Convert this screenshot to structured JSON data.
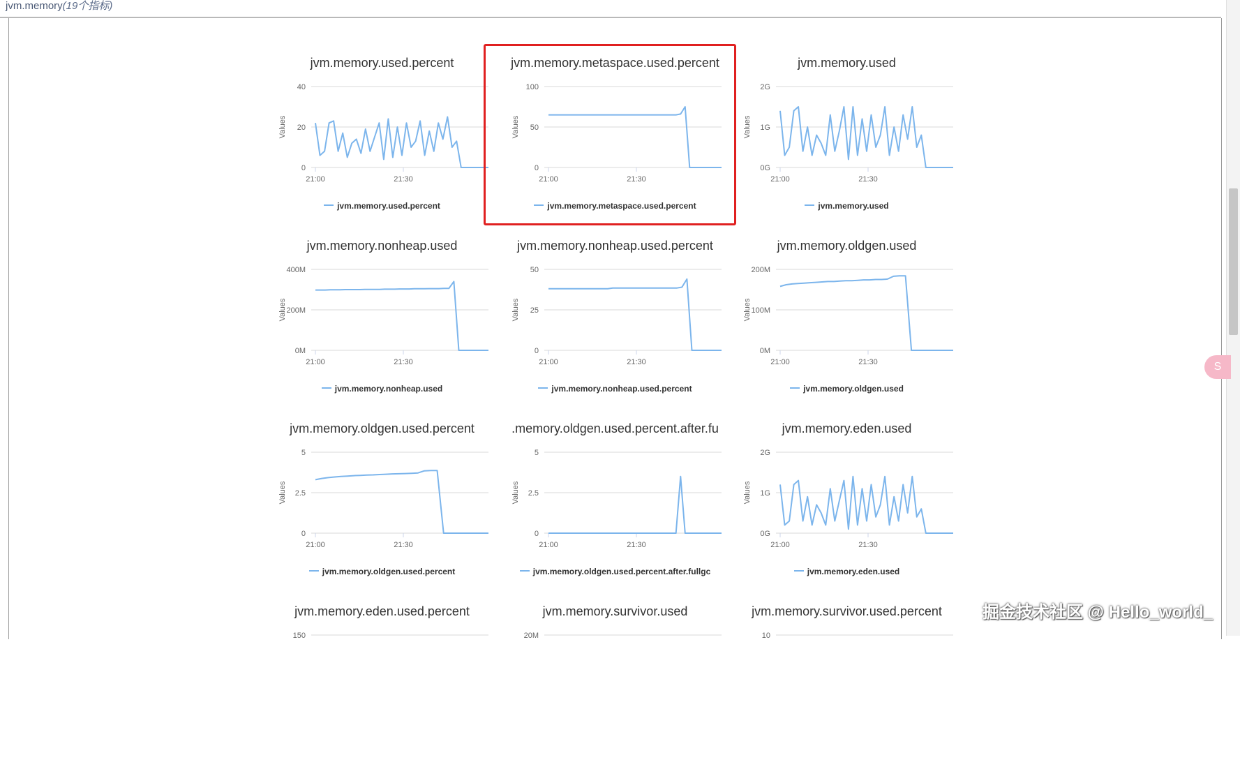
{
  "header": {
    "title": "jvm.memory",
    "count": "(19个指标)"
  },
  "charts": [
    {
      "title": "jvm.memory.used.percent",
      "legend": "jvm.memory.used.percent",
      "yticks": [
        "0",
        "20",
        "40"
      ],
      "ymax": 40,
      "xticks": [
        "21:00",
        "21:30"
      ],
      "series": [
        22,
        6,
        8,
        22,
        23,
        8,
        17,
        5,
        12,
        14,
        7,
        19,
        8,
        15,
        22,
        4,
        24,
        5,
        20,
        6,
        22,
        10,
        13,
        23,
        6,
        18,
        8,
        22,
        14,
        25,
        10,
        13,
        0,
        0,
        0,
        0,
        0,
        0,
        0
      ]
    },
    {
      "title": "jvm.memory.metaspace.used.percent",
      "legend": "jvm.memory.metaspace.used.percent",
      "yticks": [
        "0",
        "50",
        "100"
      ],
      "ymax": 100,
      "xticks": [
        "21:00",
        "21:30"
      ],
      "series": [
        65,
        65,
        65,
        65,
        65,
        65,
        65,
        65,
        65,
        65,
        65,
        65,
        65,
        65,
        65,
        65,
        65,
        65,
        65,
        65,
        65,
        65,
        65,
        65,
        65,
        65,
        65,
        65,
        65,
        66,
        75,
        0,
        0,
        0,
        0,
        0,
        0,
        0,
        0
      ]
    },
    {
      "title": "jvm.memory.used",
      "legend": "jvm.memory.used",
      "yticks": [
        "0G",
        "1G",
        "2G"
      ],
      "ymax": 2,
      "xticks": [
        "21:00",
        "21:30"
      ],
      "series": [
        1.4,
        0.3,
        0.5,
        1.4,
        1.5,
        0.4,
        1.0,
        0.3,
        0.8,
        0.6,
        0.3,
        1.3,
        0.4,
        0.9,
        1.5,
        0.2,
        1.5,
        0.3,
        1.2,
        0.4,
        1.3,
        0.5,
        0.8,
        1.5,
        0.3,
        1.0,
        0.4,
        1.3,
        0.7,
        1.5,
        0.5,
        0.8,
        0,
        0,
        0,
        0,
        0,
        0,
        0
      ]
    },
    {
      "title": "jvm.memory.nonheap.used",
      "legend": "jvm.memory.nonheap.used",
      "yticks": [
        "0M",
        "200M",
        "400M"
      ],
      "ymax": 400,
      "xticks": [
        "21:00",
        "21:30"
      ],
      "series": [
        298,
        298,
        298,
        299,
        299,
        299,
        300,
        300,
        300,
        300,
        301,
        301,
        301,
        301,
        302,
        302,
        302,
        303,
        303,
        303,
        304,
        304,
        304,
        305,
        305,
        305,
        306,
        306,
        340,
        0,
        0,
        0,
        0,
        0,
        0,
        0
      ]
    },
    {
      "title": "jvm.memory.nonheap.used.percent",
      "legend": "jvm.memory.nonheap.used.percent",
      "yticks": [
        "0",
        "25",
        "50"
      ],
      "ymax": 50,
      "xticks": [
        "21:00",
        "21:30"
      ],
      "series": [
        38,
        38,
        38,
        38,
        38,
        38,
        38,
        38,
        38,
        38,
        38,
        38,
        38,
        38.5,
        38.5,
        38.5,
        38.5,
        38.5,
        38.5,
        38.5,
        38.5,
        38.5,
        38.5,
        38.5,
        38.5,
        38.5,
        38.5,
        39,
        44,
        0,
        0,
        0,
        0,
        0,
        0,
        0
      ]
    },
    {
      "title": "jvm.memory.oldgen.used",
      "legend": "jvm.memory.oldgen.used",
      "yticks": [
        "0M",
        "100M",
        "200M"
      ],
      "ymax": 200,
      "xticks": [
        "21:00",
        "21:30"
      ],
      "series": [
        158,
        162,
        164,
        165,
        166,
        167,
        168,
        169,
        170,
        170,
        171,
        172,
        172,
        173,
        174,
        174,
        175,
        175,
        176,
        183,
        184,
        184,
        0,
        0,
        0,
        0,
        0,
        0,
        0,
        0
      ]
    },
    {
      "title": "jvm.memory.oldgen.used.percent",
      "legend": "jvm.memory.oldgen.used.percent",
      "yticks": [
        "0",
        "2.5",
        "5"
      ],
      "ymax": 5,
      "xticks": [
        "21:00",
        "21:30"
      ],
      "series": [
        3.3,
        3.38,
        3.43,
        3.47,
        3.5,
        3.52,
        3.55,
        3.57,
        3.59,
        3.6,
        3.62,
        3.64,
        3.66,
        3.67,
        3.68,
        3.7,
        3.72,
        3.85,
        3.87,
        3.87,
        0,
        0,
        0,
        0,
        0,
        0,
        0,
        0
      ]
    },
    {
      "title": ".memory.oldgen.used.percent.after.fu",
      "legend": "jvm.memory.oldgen.used.percent.after.fullgc",
      "yticks": [
        "0",
        "2.5",
        "5"
      ],
      "ymax": 5,
      "xticks": [
        "21:00",
        "21:30"
      ],
      "series": [
        0,
        0,
        0,
        0,
        0,
        0,
        0,
        0,
        0,
        0,
        0,
        0,
        0,
        0,
        0,
        0,
        0,
        0,
        0,
        0,
        0,
        0,
        0,
        0,
        0,
        0,
        0,
        0,
        0,
        3.5,
        0,
        0,
        0,
        0,
        0,
        0,
        0,
        0,
        0
      ]
    },
    {
      "title": "jvm.memory.eden.used",
      "legend": "jvm.memory.eden.used",
      "yticks": [
        "0G",
        "1G",
        "2G"
      ],
      "ymax": 2,
      "xticks": [
        "21:00",
        "21:30"
      ],
      "series": [
        1.2,
        0.2,
        0.3,
        1.2,
        1.3,
        0.3,
        0.9,
        0.2,
        0.7,
        0.5,
        0.2,
        1.1,
        0.3,
        0.8,
        1.3,
        0.1,
        1.4,
        0.2,
        1.1,
        0.3,
        1.2,
        0.4,
        0.7,
        1.4,
        0.2,
        0.9,
        0.3,
        1.2,
        0.5,
        1.4,
        0.4,
        0.6,
        0,
        0,
        0,
        0,
        0,
        0,
        0
      ]
    },
    {
      "title": "jvm.memory.eden.used.percent",
      "legend": "",
      "yticks": [
        "150"
      ],
      "ymax": 150,
      "xticks": [],
      "series": []
    },
    {
      "title": "jvm.memory.survivor.used",
      "legend": "",
      "yticks": [
        "20M"
      ],
      "ymax": 20,
      "xticks": [],
      "series": []
    },
    {
      "title": "jvm.memory.survivor.used.percent",
      "legend": "",
      "yticks": [
        "10"
      ],
      "ymax": 10,
      "xticks": [],
      "series": []
    }
  ],
  "watermark": "掘金技术社区 @ Hello_world_",
  "float_button": {
    "label": "S"
  },
  "colors": {
    "series": "#7cb5ec",
    "grid": "#d8d8d8",
    "highlight": "#e02020"
  }
}
